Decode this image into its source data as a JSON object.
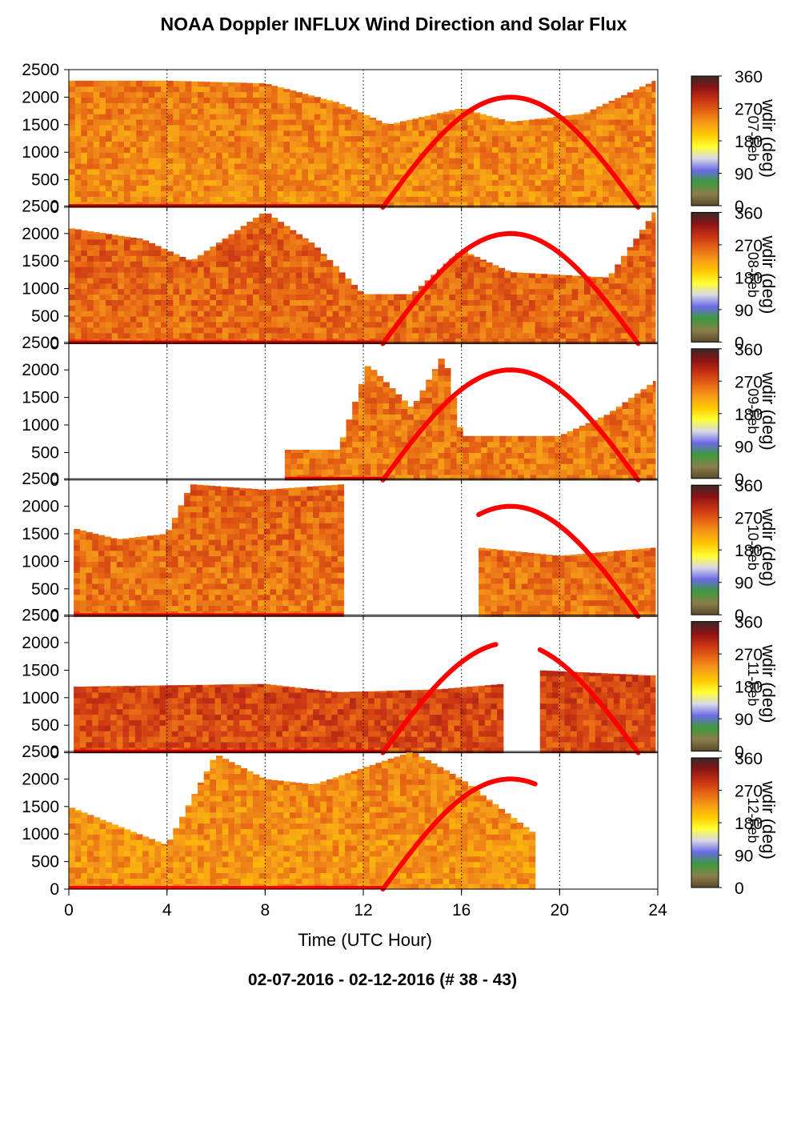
{
  "figure": {
    "title": "NOAA Doppler INFLUX Wind Direction and Solar Flux",
    "subtitle": "02-07-2016 - 02-12-2016   (# 38 - 43)",
    "xlabel": "Time (UTC Hour)",
    "colorbar_label": "wdir (deg)",
    "colorbar_ticks": [
      "0",
      "90",
      "180",
      "270",
      "360"
    ],
    "colormap": [
      "#5a4a2a",
      "#8a7f4a",
      "#3c9a3c",
      "#6a6ae6",
      "#d8d8e6",
      "#ffff32",
      "#ffc800",
      "#f59b19",
      "#e66414",
      "#c83214",
      "#8c1414",
      "#3c2828"
    ]
  },
  "chart_data": [
    {
      "type": "heatmap",
      "panel": 1,
      "day_label": "07-Feb",
      "x": [
        0,
        24
      ],
      "y": [
        0,
        2500
      ],
      "xticks": [
        "0",
        "4",
        "8",
        "12",
        "16",
        "20",
        "24"
      ],
      "yticks": [
        "0",
        "500",
        "1000",
        "1500",
        "2000",
        "2500"
      ],
      "xlim": [
        0,
        24
      ],
      "ylim": [
        0,
        2500
      ],
      "zlabel": "wdir (deg)",
      "zlim": [
        0,
        360
      ],
      "grid": "dotted vertical at 4-hour intervals",
      "data_coverage": {
        "start_hour": 0.0,
        "end_hour": 23.9,
        "top_m": [
          [
            0,
            2300
          ],
          [
            4,
            2300
          ],
          [
            8,
            2250
          ],
          [
            11,
            1900
          ],
          [
            13,
            1500
          ],
          [
            16,
            1800
          ],
          [
            18,
            1550
          ],
          [
            21,
            1700
          ],
          [
            23.9,
            2300
          ]
        ]
      },
      "dominant_wdir_deg": 235,
      "solar_flux_curve": {
        "color": "#ff0000",
        "rise_hour": 12.8,
        "peak_hour": 18.0,
        "peak_value": 2000,
        "set_hour": 23.2,
        "segments": [
          [
            12.8,
            23.2
          ]
        ]
      }
    },
    {
      "type": "heatmap",
      "panel": 2,
      "day_label": "08-Feb",
      "x": [
        0,
        24
      ],
      "y": [
        0,
        2500
      ],
      "xticks": [
        "0",
        "4",
        "8",
        "12",
        "16",
        "20",
        "24"
      ],
      "yticks": [
        "0",
        "500",
        "1000",
        "1500",
        "2000",
        "2500"
      ],
      "xlim": [
        0,
        24
      ],
      "ylim": [
        0,
        2500
      ],
      "zlabel": "wdir (deg)",
      "zlim": [
        0,
        360
      ],
      "grid": "dotted vertical at 4-hour intervals",
      "data_coverage": {
        "start_hour": 0.0,
        "end_hour": 23.9,
        "top_m": [
          [
            0,
            2100
          ],
          [
            3,
            1900
          ],
          [
            5,
            1500
          ],
          [
            8,
            2400
          ],
          [
            10,
            1800
          ],
          [
            12,
            900
          ],
          [
            14,
            900
          ],
          [
            16,
            1700
          ],
          [
            18,
            1300
          ],
          [
            22,
            1200
          ],
          [
            23.9,
            2400
          ]
        ]
      },
      "dominant_wdir_deg": 255,
      "solar_flux_curve": {
        "color": "#ff0000",
        "rise_hour": 12.8,
        "peak_hour": 18.0,
        "peak_value": 2000,
        "set_hour": 23.2,
        "segments": [
          [
            12.8,
            23.2
          ]
        ]
      }
    },
    {
      "type": "heatmap",
      "panel": 3,
      "day_label": "09-Feb",
      "x": [
        0,
        24
      ],
      "y": [
        0,
        2500
      ],
      "xticks": [
        "0",
        "4",
        "8",
        "12",
        "16",
        "20",
        "24"
      ],
      "yticks": [
        "0",
        "500",
        "1000",
        "1500",
        "2000",
        "2500"
      ],
      "xlim": [
        0,
        24
      ],
      "ylim": [
        0,
        2500
      ],
      "zlabel": "wdir (deg)",
      "zlim": [
        0,
        360
      ],
      "grid": "dotted vertical at 4-hour intervals",
      "data_coverage": {
        "start_hour": 8.8,
        "end_hour": 23.9,
        "top_m": [
          [
            8.8,
            550
          ],
          [
            11,
            550
          ],
          [
            12.2,
            2100
          ],
          [
            14,
            1300
          ],
          [
            15.3,
            2300
          ],
          [
            16,
            800
          ],
          [
            20,
            800
          ],
          [
            22,
            1200
          ],
          [
            23.9,
            1800
          ]
        ]
      },
      "dominant_wdir_deg": 245,
      "solar_flux_curve": {
        "color": "#ff0000",
        "rise_hour": 12.8,
        "peak_hour": 18.0,
        "peak_value": 2000,
        "set_hour": 23.2,
        "segments": [
          [
            12.8,
            23.2
          ]
        ]
      }
    },
    {
      "type": "heatmap",
      "panel": 4,
      "day_label": "10-Feb",
      "x": [
        0,
        24
      ],
      "y": [
        0,
        2500
      ],
      "xticks": [
        "0",
        "4",
        "8",
        "12",
        "16",
        "20",
        "24"
      ],
      "yticks": [
        "0",
        "500",
        "1000",
        "1500",
        "2000",
        "2500"
      ],
      "xlim": [
        0,
        24
      ],
      "ylim": [
        0,
        2500
      ],
      "zlabel": "wdir (deg)",
      "zlim": [
        0,
        360
      ],
      "grid": "dotted vertical at 4-hour intervals",
      "data_coverage": {
        "start_hour": 0.2,
        "end_hour": 23.9,
        "gaps": [
          [
            11.2,
            16.7
          ]
        ],
        "top_m": [
          [
            0.2,
            1600
          ],
          [
            2,
            1400
          ],
          [
            4,
            1500
          ],
          [
            5,
            2400
          ],
          [
            8,
            2300
          ],
          [
            11.2,
            2400
          ],
          [
            16.7,
            1250
          ],
          [
            20,
            1100
          ],
          [
            23.9,
            1250
          ]
        ]
      },
      "dominant_wdir_deg": 250,
      "solar_flux_curve": {
        "color": "#ff0000",
        "rise_hour": 12.8,
        "peak_hour": 18.0,
        "peak_value": 2000,
        "set_hour": 23.2,
        "segments": [
          [
            16.7,
            23.2
          ]
        ]
      }
    },
    {
      "type": "heatmap",
      "panel": 5,
      "day_label": "11-Feb",
      "x": [
        0,
        24
      ],
      "y": [
        0,
        2500
      ],
      "xticks": [
        "0",
        "4",
        "8",
        "12",
        "16",
        "20",
        "24"
      ],
      "yticks": [
        "0",
        "500",
        "1000",
        "1500",
        "2000",
        "2500"
      ],
      "xlim": [
        0,
        24
      ],
      "ylim": [
        0,
        2500
      ],
      "zlabel": "wdir (deg)",
      "zlim": [
        0,
        360
      ],
      "grid": "dotted vertical at 4-hour intervals",
      "data_coverage": {
        "start_hour": 0.2,
        "end_hour": 23.9,
        "gaps": [
          [
            17.7,
            19.1
          ]
        ],
        "top_m": [
          [
            0.2,
            1200
          ],
          [
            8,
            1250
          ],
          [
            11,
            1100
          ],
          [
            15,
            1150
          ],
          [
            17.7,
            1250
          ],
          [
            19.1,
            1500
          ],
          [
            23.9,
            1400
          ]
        ]
      },
      "dominant_wdir_deg": 275,
      "solar_flux_curve": {
        "color": "#ff0000",
        "rise_hour": 12.8,
        "peak_hour": 18.0,
        "peak_value": 2000,
        "set_hour": 23.2,
        "segments": [
          [
            12.8,
            17.4
          ],
          [
            19.2,
            23.2
          ]
        ]
      }
    },
    {
      "type": "heatmap",
      "panel": 6,
      "day_label": "12-Feb",
      "x": [
        0,
        24
      ],
      "y": [
        0,
        2500
      ],
      "xticks": [
        "0",
        "4",
        "8",
        "12",
        "16",
        "20",
        "24"
      ],
      "yticks": [
        "0",
        "500",
        "1000",
        "1500",
        "2000",
        "2500"
      ],
      "xlim": [
        0,
        24
      ],
      "ylim": [
        0,
        2500
      ],
      "zlabel": "wdir (deg)",
      "zlim": [
        0,
        360
      ],
      "grid": "dotted vertical at 4-hour intervals",
      "data_coverage": {
        "start_hour": 0.0,
        "end_hour": 19.0,
        "top_m": [
          [
            0,
            1500
          ],
          [
            4,
            800
          ],
          [
            6,
            2450
          ],
          [
            8,
            2000
          ],
          [
            10,
            1900
          ],
          [
            14,
            2500
          ],
          [
            16,
            2000
          ],
          [
            19,
            1000
          ]
        ]
      },
      "dominant_wdir_deg": 230,
      "solar_flux_curve": {
        "color": "#ff0000",
        "rise_hour": 12.8,
        "peak_hour": 18.0,
        "peak_value": 2000,
        "set_hour": 23.2,
        "segments": [
          [
            12.8,
            19.0
          ]
        ]
      }
    }
  ]
}
